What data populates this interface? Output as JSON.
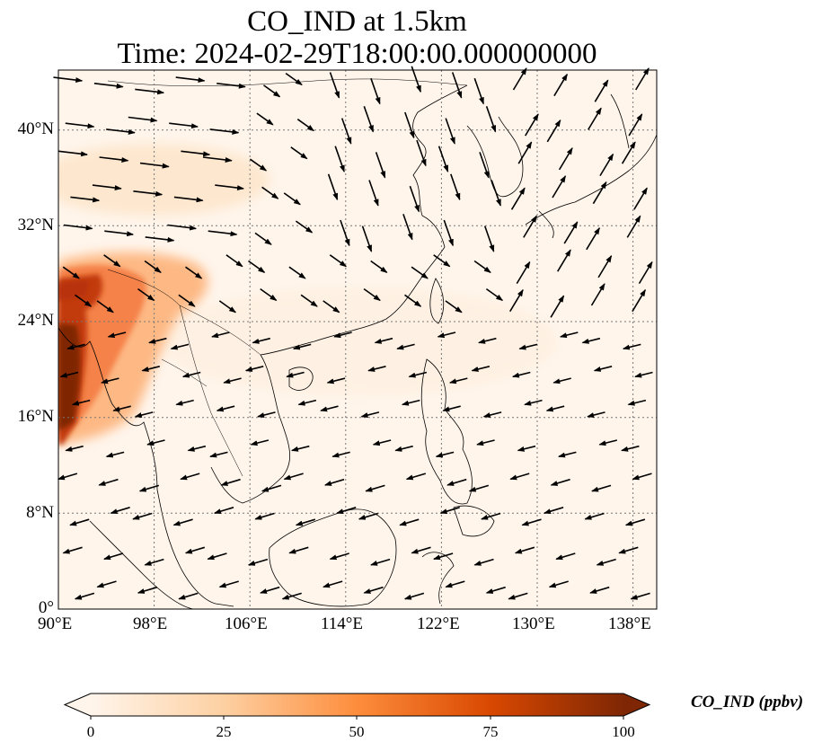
{
  "title_line1": "CO_IND at 1.5km",
  "title_line2": "Time: 2024-02-29T18:00:00.000000000",
  "colorbar": {
    "label": "CO_IND (ppbv)",
    "ticks": [
      "0",
      "25",
      "50",
      "75",
      "100"
    ],
    "colors": [
      "#fff5eb",
      "#fdd0a2",
      "#fd8d3c",
      "#d94801",
      "#7f2704"
    ]
  },
  "map": {
    "lon_range": [
      90,
      140
    ],
    "lat_range": [
      0,
      45
    ],
    "x_ticks": [
      "90°E",
      "98°E",
      "106°E",
      "114°E",
      "122°E",
      "130°E",
      "138°E"
    ],
    "y_ticks": [
      "0°",
      "8°N",
      "16°N",
      "24°N",
      "32°N",
      "40°N"
    ],
    "gridlines": true,
    "high_concentration_region": "Northeast India / Bangladesh / Myanmar"
  }
}
